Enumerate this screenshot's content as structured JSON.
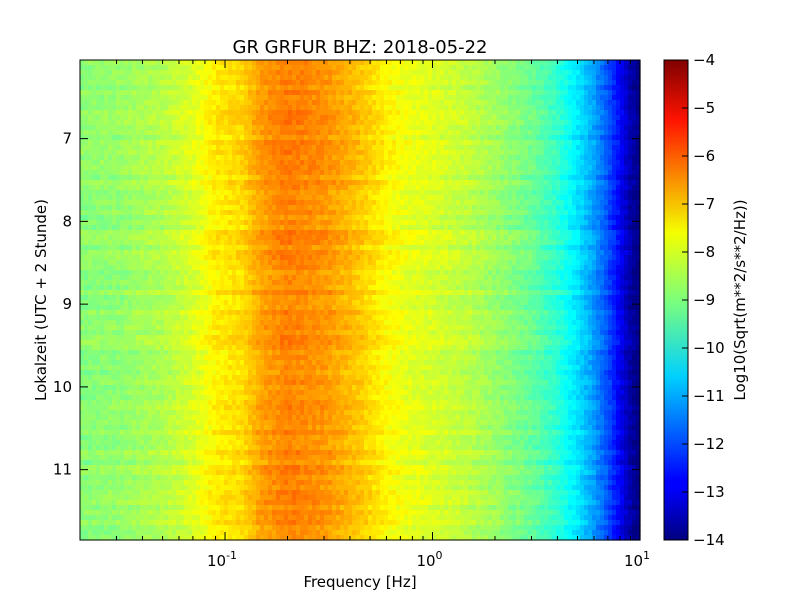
{
  "chart_data": {
    "type": "heatmap",
    "title": "GR GRFUR BHZ: 2018-05-22",
    "xlabel": "Frequency [Hz]",
    "ylabel": "Lokalzeit (UTC + 2 Stunde)",
    "xscale": "log",
    "xlim": [
      0.02,
      10
    ],
    "ylim": [
      6.05,
      11.85
    ],
    "y_inverted": true,
    "xticks": [
      {
        "value": 0.1,
        "base": "10",
        "exp": "-1"
      },
      {
        "value": 1,
        "base": "10",
        "exp": "0"
      },
      {
        "value": 10,
        "base": "10",
        "exp": "1"
      }
    ],
    "yticks": [
      {
        "value": 7,
        "label": "7"
      },
      {
        "value": 8,
        "label": "8"
      },
      {
        "value": 9,
        "label": "9"
      },
      {
        "value": 10,
        "label": "10"
      },
      {
        "value": 11,
        "label": "11"
      }
    ],
    "colormap": "jet",
    "colorbar": {
      "label": "Log10(Sqrt(m**2/s**2/Hz))",
      "range": [
        -14,
        -4
      ],
      "ticks": [
        "-4",
        "-5",
        "-6",
        "-7",
        "-8",
        "-9",
        "-10",
        "-11",
        "-12",
        "-13",
        "-14"
      ]
    },
    "spectrum_profile": {
      "frequency_hz": [
        0.02,
        0.03,
        0.05,
        0.07,
        0.09,
        0.12,
        0.15,
        0.2,
        0.3,
        0.45,
        0.6,
        0.8,
        1.0,
        1.5,
        2.0,
        3.0,
        4.0,
        5.0,
        6.0,
        7.0,
        8.0,
        9.0,
        10.0
      ],
      "value": [
        -8.9,
        -8.8,
        -8.5,
        -8.1,
        -7.6,
        -7.4,
        -6.8,
        -6.5,
        -6.7,
        -7.2,
        -7.7,
        -8.0,
        -8.1,
        -8.4,
        -8.7,
        -9.2,
        -9.8,
        -10.5,
        -11.2,
        -12.0,
        -12.8,
        -13.6,
        -14.0
      ]
    }
  }
}
